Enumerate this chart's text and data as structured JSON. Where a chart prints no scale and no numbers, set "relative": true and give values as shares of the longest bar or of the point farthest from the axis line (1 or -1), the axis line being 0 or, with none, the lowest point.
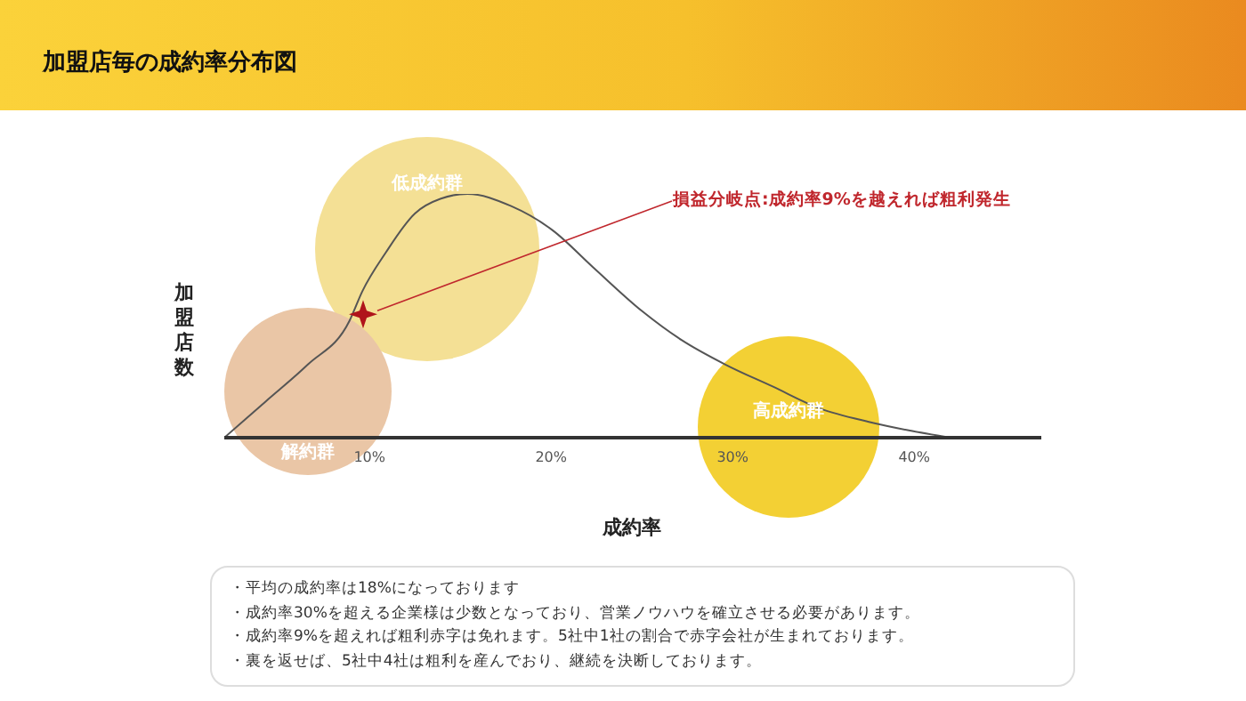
{
  "chart_data": {
    "type": "line",
    "title": "加盟店毎の成約率分布図",
    "xlabel": "成約率",
    "ylabel": "加盟店数",
    "relative": true,
    "marker": "none",
    "grid": false,
    "legend": false,
    "x": [
      2,
      4.3,
      6.6,
      8.9,
      9.6,
      10.9,
      12.5,
      13.9,
      15.4,
      17.8,
      20.1,
      22.3,
      25,
      27.2,
      29.6,
      32.2,
      34.8,
      37.5,
      39.7,
      42
    ],
    "series": [
      {
        "color": "#555555",
        "values": [
          0,
          0.15,
          0.3,
          0.48,
          0.6,
          0.76,
          0.92,
          0.98,
          1,
          0.95,
          0.85,
          0.7,
          0.52,
          0.4,
          0.3,
          0.21,
          0.12,
          0.065,
          0.03,
          0
        ]
      }
    ],
    "xlim": [
      2,
      47
    ],
    "xticks": [
      {
        "value": 10,
        "label": "10%"
      },
      {
        "value": 20,
        "label": "20%"
      },
      {
        "value": 30,
        "label": "30%"
      },
      {
        "value": 40,
        "label": "40%"
      }
    ],
    "annotations": [
      "低成約群",
      "解約群",
      "高成約群",
      "損益分岐点:成約率9%を越えれば粗利発生",
      "・平均の成約率は18%になっております",
      "・成約率30%を超える企業様は少数となっており、営業ノウハウを確立させる必要があります。",
      "・成約率9%を超えれば粗利赤字は免れます。5社中1社の割合で赤字会社が生まれております。",
      "・裏を返せば、5社中4社は粗利を産んでおり、継続を決断しております。"
    ]
  }
}
